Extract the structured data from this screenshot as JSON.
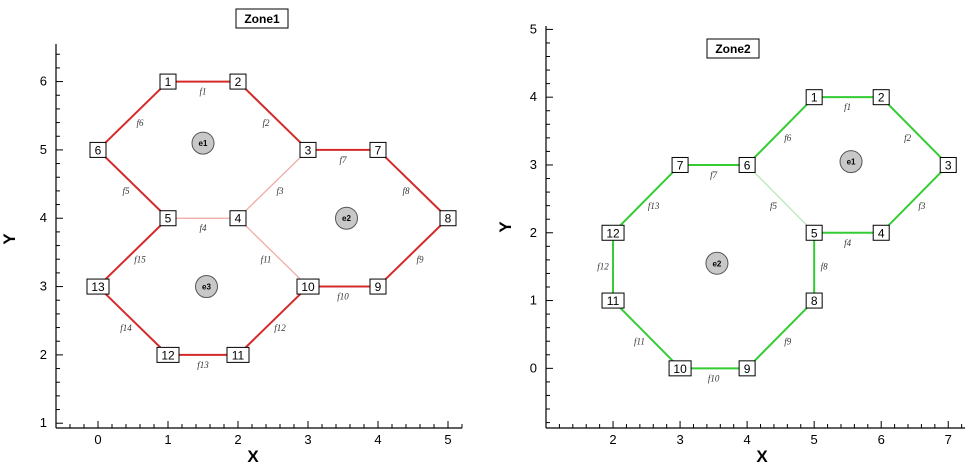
{
  "chart_data": [
    {
      "type": "diagram",
      "title": "Zone1",
      "xlabel": "X",
      "ylabel": "Y",
      "xlim": [
        -0.6,
        5.2
      ],
      "ylim": [
        0.93,
        6.55
      ],
      "x_ticks": [
        "0",
        "1",
        "2",
        "3",
        "4",
        "5"
      ],
      "y_ticks": [
        "1",
        "2",
        "3",
        "4",
        "5",
        "6"
      ],
      "edge_color": "#d42a2a",
      "faint_edge_color": "#f0a7a0",
      "nodes": [
        {
          "id": "1",
          "x": 1.0,
          "y": 6.0
        },
        {
          "id": "2",
          "x": 2.0,
          "y": 6.0
        },
        {
          "id": "3",
          "x": 3.0,
          "y": 5.0
        },
        {
          "id": "4",
          "x": 2.0,
          "y": 4.0
        },
        {
          "id": "5",
          "x": 1.0,
          "y": 4.0
        },
        {
          "id": "6",
          "x": 0.0,
          "y": 5.0
        },
        {
          "id": "7",
          "x": 4.0,
          "y": 5.0
        },
        {
          "id": "8",
          "x": 5.0,
          "y": 4.0
        },
        {
          "id": "9",
          "x": 4.0,
          "y": 3.0
        },
        {
          "id": "10",
          "x": 3.0,
          "y": 3.0
        },
        {
          "id": "11",
          "x": 2.0,
          "y": 2.0
        },
        {
          "id": "12",
          "x": 1.0,
          "y": 2.0
        },
        {
          "id": "13",
          "x": 0.0,
          "y": 3.0
        }
      ],
      "faces": [
        {
          "label": "f1",
          "from": "1",
          "to": "2",
          "faint": false
        },
        {
          "label": "f2",
          "from": "2",
          "to": "3",
          "faint": false
        },
        {
          "label": "f3",
          "from": "3",
          "to": "4",
          "faint": true
        },
        {
          "label": "f4",
          "from": "4",
          "to": "5",
          "faint": true
        },
        {
          "label": "f5",
          "from": "5",
          "to": "6",
          "faint": false
        },
        {
          "label": "f6",
          "from": "6",
          "to": "1",
          "faint": false
        },
        {
          "label": "f7",
          "from": "3",
          "to": "7",
          "faint": false
        },
        {
          "label": "f8",
          "from": "7",
          "to": "8",
          "faint": false
        },
        {
          "label": "f9",
          "from": "8",
          "to": "9",
          "faint": false
        },
        {
          "label": "f10",
          "from": "9",
          "to": "10",
          "faint": false
        },
        {
          "label": "f11",
          "from": "10",
          "to": "4",
          "faint": true
        },
        {
          "label": "f12",
          "from": "10",
          "to": "11",
          "faint": false
        },
        {
          "label": "f13",
          "from": "11",
          "to": "12",
          "faint": false
        },
        {
          "label": "f14",
          "from": "12",
          "to": "13",
          "faint": false
        },
        {
          "label": "f15",
          "from": "13",
          "to": "5",
          "faint": false
        }
      ],
      "elements": [
        {
          "label": "e1",
          "x": 1.5,
          "y": 5.1
        },
        {
          "label": "e2",
          "x": 3.55,
          "y": 4.0
        },
        {
          "label": "e3",
          "x": 1.55,
          "y": 3.0
        }
      ]
    },
    {
      "type": "diagram",
      "title": "Zone2",
      "xlabel": "X",
      "ylabel": "Y",
      "xlim": [
        1.0,
        7.25
      ],
      "ylim": [
        -0.88,
        5.05
      ],
      "x_ticks": [
        "2",
        "3",
        "4",
        "5",
        "6",
        "7"
      ],
      "y_ticks": [
        "0",
        "1",
        "2",
        "3",
        "4",
        "5"
      ],
      "edge_color": "#33cc33",
      "faint_edge_color": "#b3e6b3",
      "nodes": [
        {
          "id": "1",
          "x": 5.0,
          "y": 4.0
        },
        {
          "id": "2",
          "x": 6.0,
          "y": 4.0
        },
        {
          "id": "3",
          "x": 7.0,
          "y": 3.0
        },
        {
          "id": "4",
          "x": 6.0,
          "y": 2.0
        },
        {
          "id": "5",
          "x": 5.0,
          "y": 2.0
        },
        {
          "id": "6",
          "x": 4.0,
          "y": 3.0
        },
        {
          "id": "7",
          "x": 3.0,
          "y": 3.0
        },
        {
          "id": "8",
          "x": 5.0,
          "y": 1.0
        },
        {
          "id": "9",
          "x": 4.0,
          "y": 0.0
        },
        {
          "id": "10",
          "x": 3.0,
          "y": 0.0
        },
        {
          "id": "11",
          "x": 2.0,
          "y": 1.0
        },
        {
          "id": "12",
          "x": 2.0,
          "y": 2.0
        }
      ],
      "faces": [
        {
          "label": "f1",
          "from": "1",
          "to": "2",
          "faint": false
        },
        {
          "label": "f2",
          "from": "2",
          "to": "3",
          "faint": false
        },
        {
          "label": "f3",
          "from": "3",
          "to": "4",
          "faint": false
        },
        {
          "label": "f4",
          "from": "4",
          "to": "5",
          "faint": false
        },
        {
          "label": "f5",
          "from": "5",
          "to": "6",
          "faint": true
        },
        {
          "label": "f6",
          "from": "6",
          "to": "1",
          "faint": false
        },
        {
          "label": "f7",
          "from": "7",
          "to": "6",
          "faint": false
        },
        {
          "label": "f8",
          "from": "5",
          "to": "8",
          "faint": false
        },
        {
          "label": "f9",
          "from": "8",
          "to": "9",
          "faint": false
        },
        {
          "label": "f10",
          "from": "9",
          "to": "10",
          "faint": false
        },
        {
          "label": "f11",
          "from": "10",
          "to": "11",
          "faint": false
        },
        {
          "label": "f12",
          "from": "11",
          "to": "12",
          "faint": false
        },
        {
          "label": "f13",
          "from": "12",
          "to": "7",
          "faint": false
        }
      ],
      "elements": [
        {
          "label": "e1",
          "x": 5.55,
          "y": 3.05
        },
        {
          "label": "e2",
          "x": 3.55,
          "y": 1.55
        }
      ]
    }
  ]
}
